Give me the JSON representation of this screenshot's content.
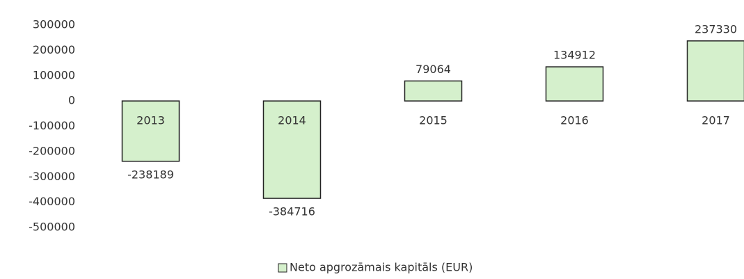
{
  "chart_data": {
    "type": "bar",
    "categories": [
      "2013",
      "2014",
      "2015",
      "2016",
      "2017"
    ],
    "series": [
      {
        "name": "Neto apgrozāmais kapitāls (EUR)",
        "color": "#d5f0cc",
        "values": [
          -238189,
          -384716,
          79064,
          134912,
          237330
        ]
      }
    ],
    "ylim": [
      -500000,
      300000
    ],
    "yticks": [
      -500000,
      -400000,
      -300000,
      -200000,
      -100000,
      0,
      100000,
      200000,
      300000
    ],
    "grid": false,
    "legend": "bottom"
  }
}
